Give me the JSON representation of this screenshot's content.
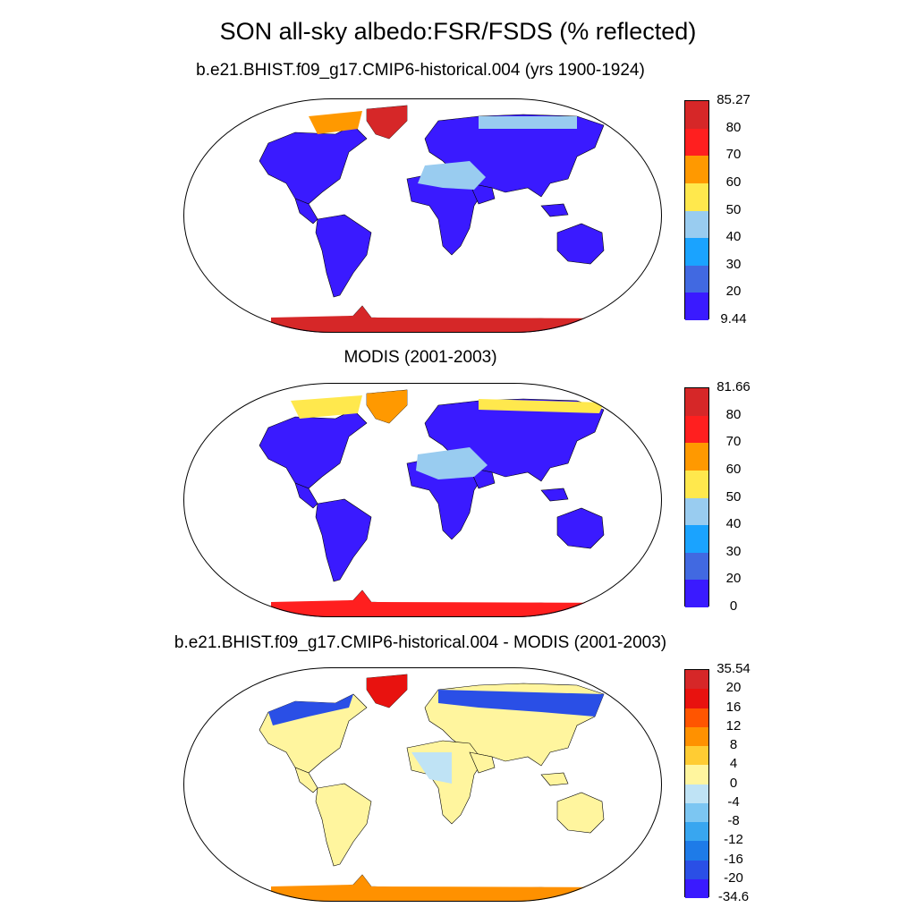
{
  "title": "SON all-sky albedo:FSR/FSDS (% reflected)",
  "panels": [
    {
      "subtitle": "b.e21.BHIST.f09_g17.CMIP6-historical.004 (yrs 1900-1924)",
      "colorbar": {
        "labels": [
          "85.27",
          "80",
          "70",
          "60",
          "50",
          "40",
          "30",
          "20",
          "9.44"
        ],
        "colors": [
          "#d62728",
          "#ff1f1f",
          "#ff9900",
          "#ffe84d",
          "#99ccf0",
          "#1aa3ff",
          "#4169e1",
          "#3a1aff"
        ]
      }
    },
    {
      "subtitle": "MODIS (2001-2003)",
      "colorbar": {
        "labels": [
          "81.66",
          "80",
          "70",
          "60",
          "50",
          "40",
          "30",
          "20",
          "0"
        ],
        "colors": [
          "#d62728",
          "#ff1f1f",
          "#ff9900",
          "#ffe84d",
          "#99ccf0",
          "#1aa3ff",
          "#4169e1",
          "#3a1aff"
        ]
      }
    },
    {
      "subtitle": "b.e21.BHIST.f09_g17.CMIP6-historical.004 - MODIS (2001-2003)",
      "colorbar": {
        "labels": [
          "35.54",
          "20",
          "16",
          "12",
          "8",
          "4",
          "0",
          "-4",
          "-8",
          "-12",
          "-16",
          "-20",
          "-34.6"
        ],
        "colors": [
          "#d62728",
          "#e8120f",
          "#ff5500",
          "#ff9100",
          "#ffcc33",
          "#fff59e",
          "#bfe3f5",
          "#7cc6f2",
          "#38a6f0",
          "#1e7be8",
          "#2a4fe6",
          "#3a1aff"
        ]
      }
    }
  ]
}
